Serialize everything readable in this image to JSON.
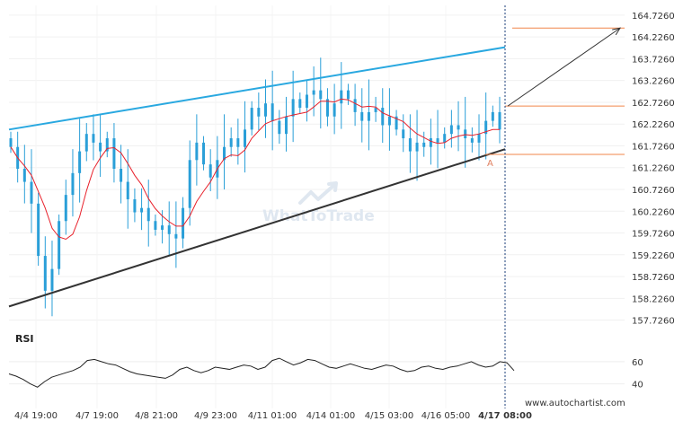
{
  "chart_data": [
    {
      "type": "candlestick",
      "title": "",
      "price_axis": {
        "range": [
          157.45,
          164.95
        ],
        "ticks": [
          "164.7260",
          "164.2260",
          "163.7260",
          "163.2260",
          "162.7260",
          "162.2260",
          "161.7260",
          "161.2260",
          "160.7260",
          "160.2260",
          "159.7260",
          "159.2260",
          "158.7260",
          "158.2260",
          "157.7260"
        ]
      },
      "x_axis": {
        "ticks": [
          "4/4 19:00",
          "4/7 19:00",
          "4/8 21:00",
          "4/9 23:00",
          "4/11 01:00",
          "4/14 01:00",
          "4/15 03:00",
          "4/16 05:00",
          "4/17 08:00"
        ],
        "current_label": "4/17 08:00"
      },
      "pattern": {
        "name": "Rising Wedge / Channel",
        "upper_line": {
          "start": 162.1,
          "end": 163.99,
          "color": "#29a8e0"
        },
        "lower_line": {
          "start": 158.04,
          "end": 161.65,
          "color": "#333333"
        },
        "point_label": "A"
      },
      "levels": {
        "target": 164.43,
        "breakout": 162.64,
        "support": 161.53,
        "color": "#f0864a"
      },
      "forecast_arrow": {
        "from": 162.64,
        "to": 164.43,
        "color": "#333333"
      },
      "moving_average_color": "#e8212b",
      "candle_color": "#2a9fd8",
      "series_seed_closes": [
        161.7,
        161.2,
        160.9,
        160.4,
        159.2,
        158.4,
        158.9,
        160.0,
        160.6,
        161.1,
        161.6,
        162.0,
        161.8,
        161.6,
        161.9,
        161.2,
        160.9,
        160.5,
        160.2,
        160.3,
        160.0,
        159.8,
        159.9,
        159.7,
        159.6,
        160.3,
        161.4,
        161.8,
        161.3,
        161.0,
        161.4,
        161.7,
        161.9,
        161.7,
        162.1,
        162.6,
        162.4,
        162.7,
        162.3,
        162.0,
        162.4,
        162.8,
        162.6,
        162.9,
        163.0,
        162.8,
        162.4,
        162.7,
        163.0,
        162.8,
        162.5,
        162.3,
        162.5,
        162.6,
        162.2,
        162.4,
        162.1,
        161.9,
        161.6,
        161.8,
        161.7,
        161.9,
        161.8,
        162.0,
        162.2,
        162.1,
        161.9,
        161.8,
        162.0,
        162.3,
        162.5,
        162.1
      ]
    },
    {
      "type": "line",
      "name": "RSI",
      "panel_label": "RSI",
      "y_ticks": [
        "60",
        "40"
      ],
      "ylim": [
        30,
        72
      ],
      "values": [
        49,
        47,
        44,
        40,
        37,
        42,
        46,
        48,
        50,
        52,
        55,
        61,
        62,
        60,
        58,
        57,
        54,
        51,
        49,
        48,
        47,
        46,
        45,
        48,
        53,
        55,
        52,
        50,
        52,
        55,
        54,
        53,
        55,
        57,
        56,
        53,
        55,
        61,
        63,
        60,
        57,
        59,
        62,
        61,
        58,
        55,
        54,
        56,
        58,
        56,
        54,
        53,
        55,
        57,
        56,
        53,
        51,
        52,
        55,
        56,
        54,
        53,
        55,
        56,
        58,
        60,
        57,
        55,
        56,
        60,
        59,
        52
      ]
    }
  ],
  "footer": {
    "site": "www.autochartist.com",
    "watermark": "WhatToTrade"
  }
}
